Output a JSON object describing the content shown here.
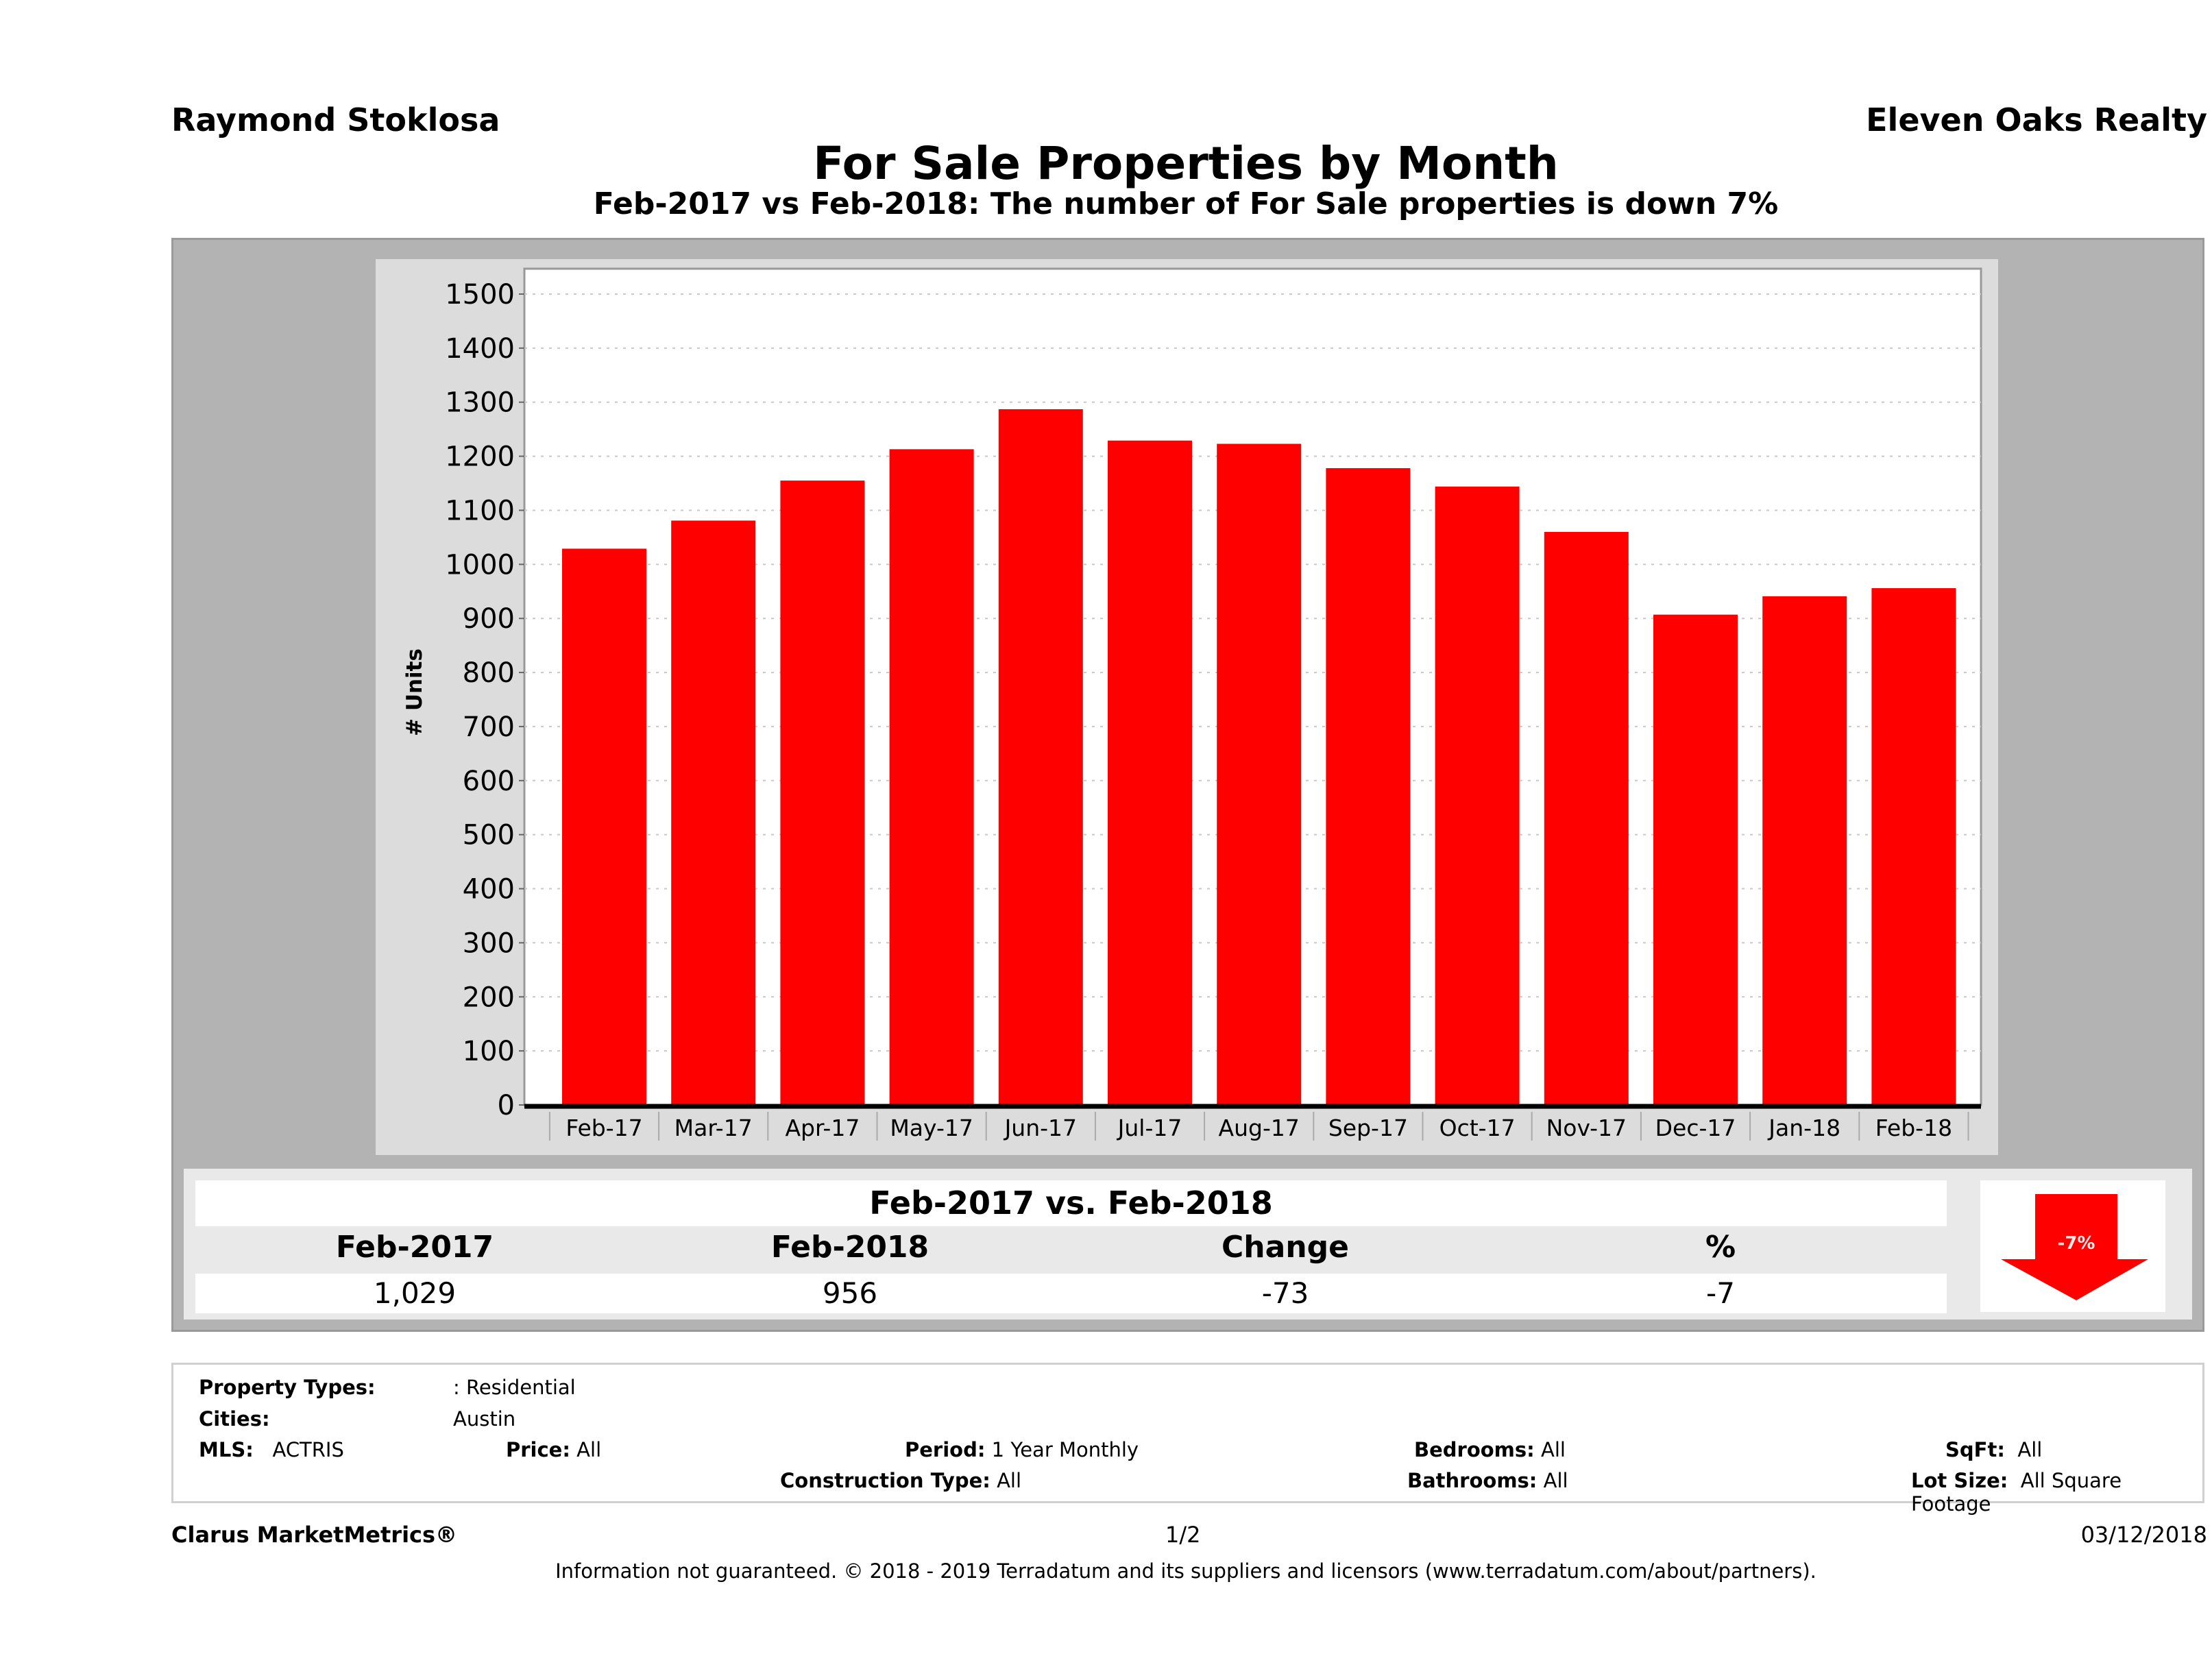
{
  "header": {
    "agent_name": "Raymond Stoklosa",
    "company_name": "Eleven Oaks Realty",
    "title": "For Sale Properties by Month",
    "subtitle": "Feb-2017 vs Feb-2018: The number of For Sale  properties is down 7%"
  },
  "chart_data": {
    "type": "bar",
    "title": "For Sale Properties by Month",
    "xlabel": "",
    "ylabel": "# Units",
    "ylim": [
      0,
      1500
    ],
    "yticks": [
      0,
      100,
      200,
      300,
      400,
      500,
      600,
      700,
      800,
      900,
      1000,
      1100,
      1200,
      1300,
      1400,
      1500
    ],
    "grid": true,
    "bar_color": "#ff0000",
    "categories": [
      "Feb-17",
      "Mar-17",
      "Apr-17",
      "May-17",
      "Jun-17",
      "Jul-17",
      "Aug-17",
      "Sep-17",
      "Oct-17",
      "Nov-17",
      "Dec-17",
      "Jan-18",
      "Feb-18"
    ],
    "values": [
      1029,
      1081,
      1155,
      1213,
      1287,
      1229,
      1223,
      1178,
      1144,
      1060,
      907,
      941,
      956
    ]
  },
  "summary": {
    "title": "Feb-2017 vs. Feb-2018",
    "headers": [
      "Feb-2017",
      "Feb-2018",
      "Change",
      "%"
    ],
    "values": [
      "1,029",
      "956",
      "-73",
      "-7"
    ],
    "arrow_label": "-7%",
    "arrow_direction": "down",
    "arrow_color": "#ff0000"
  },
  "filters": {
    "property_types_label": "Property Types:",
    "property_types_value": ": Residential",
    "cities_label": "Cities:",
    "cities_value": "Austin",
    "mls_label": "MLS:",
    "mls_value": "ACTRIS",
    "price_label": "Price:",
    "price_value": "All",
    "period_label": "Period:",
    "period_value": "1 Year Monthly",
    "construction_label": "Construction Type:",
    "construction_value": "All",
    "bedrooms_label": "Bedrooms:",
    "bedrooms_value": "All",
    "bathrooms_label": "Bathrooms:",
    "bathrooms_value": "All",
    "sqft_label": "SqFt:",
    "sqft_value": "All",
    "lotsize_label": "Lot Size:",
    "lotsize_value": "All Square Footage"
  },
  "footer": {
    "brand": "Clarus MarketMetrics®",
    "page": "1/2",
    "date": "03/12/2018",
    "disclaimer": "Information not guaranteed. © 2018 - 2019 Terradatum and its suppliers and licensors (www.terradatum.com/about/partners)."
  }
}
